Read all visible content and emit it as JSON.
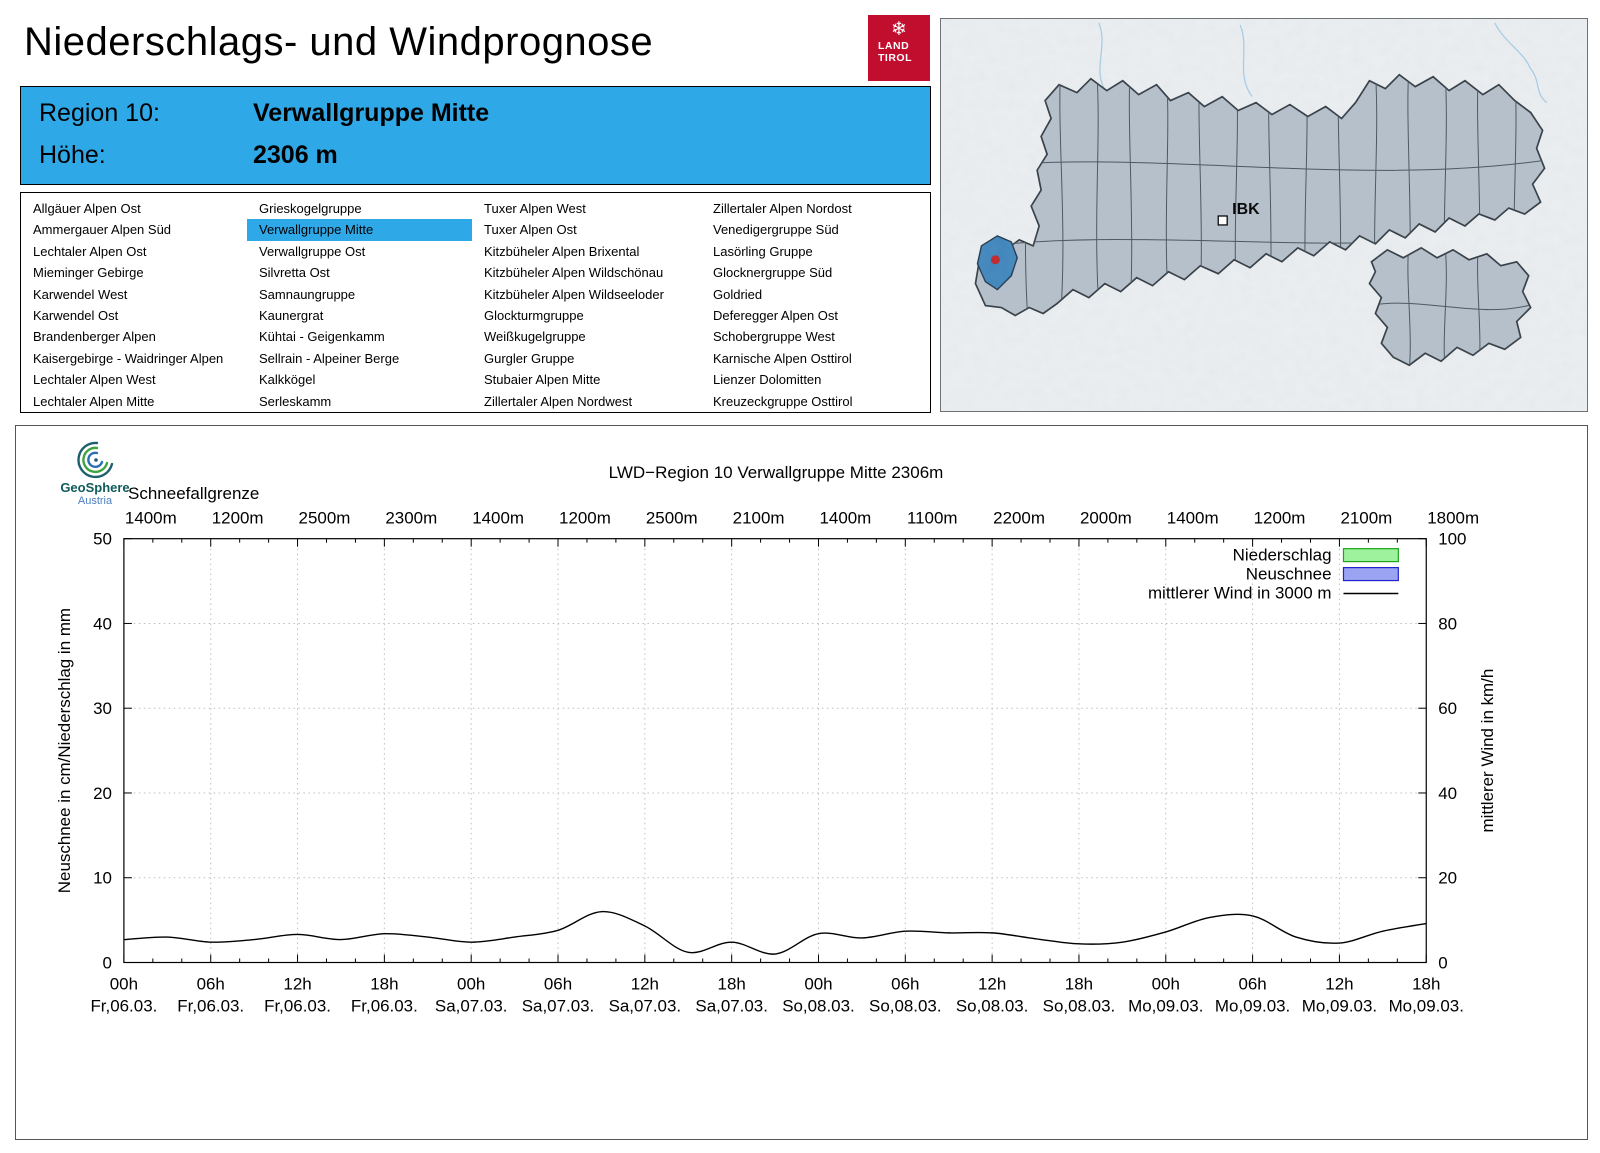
{
  "header": {
    "title": "Niederschlags- und Windprognose",
    "logo": {
      "line1": "LAND",
      "line2": "TIROL",
      "color": "#c20e2e"
    }
  },
  "region_info": {
    "region_label": "Region 10:",
    "region_name": "Verwallgruppe Mitte",
    "altitude_label": "Höhe:",
    "altitude_value": "2306 m",
    "accent_color": "#2fa8e8"
  },
  "region_list": {
    "selected": "Verwallgruppe Mitte",
    "columns": [
      [
        "Allgäuer Alpen Ost",
        "Ammergauer Alpen Süd",
        "Lechtaler Alpen Ost",
        "Mieminger Gebirge",
        "Karwendel West",
        "Karwendel Ost",
        "Brandenberger Alpen",
        "Kaisergebirge - Waidringer Alpen",
        "Lechtaler Alpen West",
        "Lechtaler Alpen Mitte"
      ],
      [
        "Grieskogelgruppe",
        "Verwallgruppe Mitte",
        "Verwallgruppe Ost",
        "Silvretta Ost",
        "Samnaungruppe",
        "Kaunergrat",
        "Kühtai - Geigenkamm",
        "Sellrain - Alpeiner Berge",
        "Kalkkögel",
        "Serleskamm"
      ],
      [
        "Tuxer Alpen West",
        "Tuxer Alpen Ost",
        "Kitzbüheler Alpen Brixental",
        "Kitzbüheler Alpen Wildschönau",
        "Kitzbüheler Alpen Wildseeloder",
        "Glockturmgruppe",
        "Weißkugelgruppe",
        "Gurgler Gruppe",
        "Stubaier Alpen Mitte",
        "Zillertaler Alpen Nordwest"
      ],
      [
        "Zillertaler Alpen Nordost",
        "Venedigergruppe Süd",
        "Lasörling Gruppe",
        "Glocknergruppe Süd",
        "Goldried",
        "Deferegger Alpen Ost",
        "Schobergruppe West",
        "Karnische Alpen Osttirol",
        "Lienzer Dolomitten",
        "Kreuzeckgruppe Osttirol"
      ]
    ]
  },
  "map": {
    "city_label": "IBK",
    "highlight_color": "#3f86bd",
    "marker_color": "#c1272d"
  },
  "logo_geosphere": {
    "name": "GeoSphere",
    "sub": "Austria"
  },
  "chart_data": {
    "type": "line",
    "title": "LWD−Region 10 Verwallgruppe Mitte 2306m",
    "snowline_label": "Schneefallgrenze",
    "snowline_values": [
      "1400m",
      "1200m",
      "2500m",
      "2300m",
      "1400m",
      "1200m",
      "2500m",
      "2100m",
      "1400m",
      "1100m",
      "2200m",
      "2000m",
      "1400m",
      "1200m",
      "2100m",
      "1800m"
    ],
    "x_ticks": [
      {
        "hour": "00h",
        "date": "Fr,06.03."
      },
      {
        "hour": "06h",
        "date": "Fr,06.03."
      },
      {
        "hour": "12h",
        "date": "Fr,06.03."
      },
      {
        "hour": "18h",
        "date": "Fr,06.03."
      },
      {
        "hour": "00h",
        "date": "Sa,07.03."
      },
      {
        "hour": "06h",
        "date": "Sa,07.03."
      },
      {
        "hour": "12h",
        "date": "Sa,07.03."
      },
      {
        "hour": "18h",
        "date": "Sa,07.03."
      },
      {
        "hour": "00h",
        "date": "So,08.03."
      },
      {
        "hour": "06h",
        "date": "So,08.03."
      },
      {
        "hour": "12h",
        "date": "So,08.03."
      },
      {
        "hour": "18h",
        "date": "So,08.03."
      },
      {
        "hour": "00h",
        "date": "Mo,09.03."
      },
      {
        "hour": "06h",
        "date": "Mo,09.03."
      },
      {
        "hour": "12h",
        "date": "Mo,09.03."
      },
      {
        "hour": "18h",
        "date": "Mo,09.03."
      }
    ],
    "x_hours_range": [
      0,
      90
    ],
    "ylabel_left": "Neuschnee in cm/Niederschlag in mm",
    "ylabel_right": "mittlerer Wind in km/h",
    "ylim_left": [
      0,
      50
    ],
    "ylim_right": [
      0,
      100
    ],
    "yticks_left": [
      0,
      10,
      20,
      30,
      40,
      50
    ],
    "yticks_right": [
      0,
      20,
      40,
      60,
      80,
      100
    ],
    "grid": true,
    "legend_position": "top-right",
    "legend": [
      {
        "label": "Niederschlag",
        "type": "box",
        "swatch_fill": "#9ef29e",
        "swatch_border": "#1ca41c"
      },
      {
        "label": "Neuschnee",
        "type": "box",
        "swatch_fill": "#9aa4f2",
        "swatch_border": "#2222cc"
      },
      {
        "label": "mittlerer Wind in 3000 m",
        "type": "line",
        "color": "#000000"
      }
    ],
    "series": [
      {
        "name": "mittlerer Wind in 3000 m",
        "axis": "right",
        "unit": "km/h",
        "x_hours": [
          0,
          3,
          6,
          9,
          12,
          15,
          18,
          21,
          24,
          27,
          30,
          33,
          36,
          39,
          42,
          45,
          48,
          51,
          54,
          57,
          60,
          63,
          66,
          69,
          72,
          75,
          78,
          81,
          84,
          87,
          90
        ],
        "values_kmh": [
          5.4,
          6.0,
          4.8,
          5.4,
          6.6,
          5.4,
          6.8,
          6.0,
          4.8,
          6.0,
          7.6,
          12.0,
          8.6,
          2.4,
          4.8,
          2.0,
          6.8,
          5.8,
          7.4,
          7.0,
          7.0,
          5.6,
          4.4,
          4.8,
          7.2,
          10.6,
          11.0,
          6.0,
          4.6,
          7.4,
          9.2
        ]
      }
    ],
    "precipitation_values": [],
    "new_snow_values": []
  }
}
